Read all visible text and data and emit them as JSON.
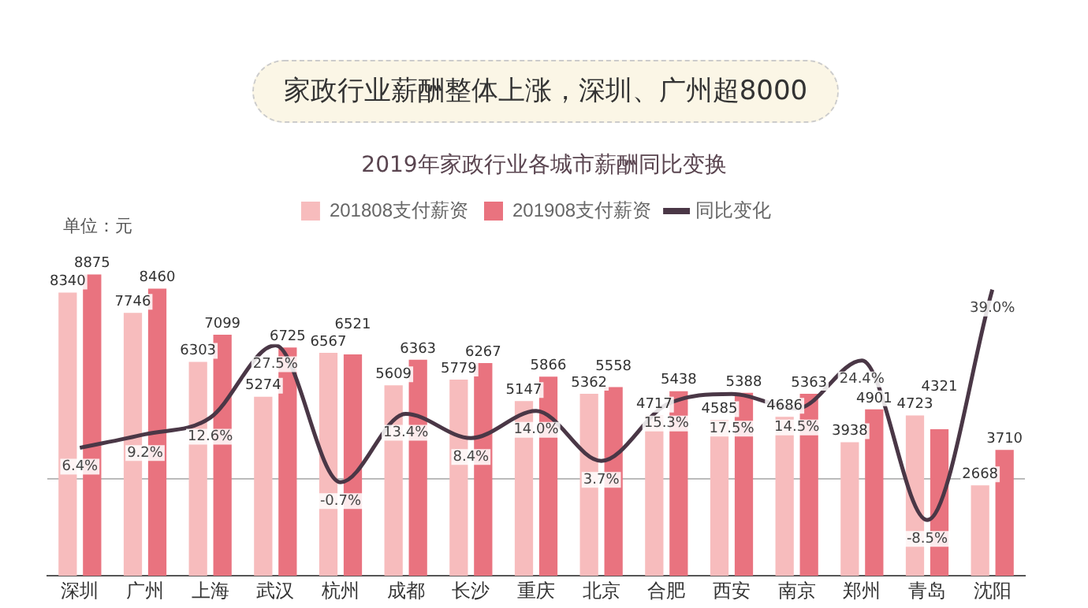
{
  "chart_data": {
    "type": "bar",
    "title": "家政行业薪酬整体上涨，深圳、广州超8000",
    "subtitle": "2019年家政行业各城市薪酬同比变换",
    "annotations": [
      "单位：元"
    ],
    "categories": [
      "深圳",
      "广州",
      "上海",
      "武汉",
      "杭州",
      "成都",
      "长沙",
      "重庆",
      "北京",
      "合肥",
      "西安",
      "南京",
      "郑州",
      "青岛",
      "沈阳"
    ],
    "series": [
      {
        "name": "201808支付薪资",
        "color": "#f7bcbd",
        "values": [
          8340,
          7746,
          6303,
          5274,
          6567,
          5609,
          5779,
          5147,
          5362,
          4717,
          4585,
          4686,
          3938,
          4723,
          2668
        ]
      },
      {
        "name": "201908支付薪资",
        "color": "#e9737f",
        "values": [
          8875,
          8460,
          7099,
          6725,
          6521,
          6363,
          6267,
          5866,
          5558,
          5438,
          5388,
          5363,
          4901,
          4321,
          3710
        ]
      },
      {
        "name": "同比变化",
        "type": "line",
        "axis": "y2",
        "color": "#4a3746",
        "marker": "none",
        "values": [
          6.4,
          9.2,
          12.6,
          27.5,
          -0.7,
          13.4,
          8.4,
          14.0,
          3.7,
          15.3,
          17.5,
          14.5,
          24.4,
          -8.5,
          39.0
        ],
        "value_labels": [
          "6.4%",
          "9.2%",
          "12.6%",
          "27.5%",
          "-0.7%",
          "13.4%",
          "8.4%",
          "14.0%",
          "3.7%",
          "15.3%",
          "17.5%",
          "14.5%",
          "24.4%",
          "-8.5%",
          "39.0%"
        ]
      }
    ],
    "data_labels": true,
    "tick_labels": "x",
    "legend": "top",
    "ref_lines": [
      {
        "axis": "y2",
        "value": 0,
        "color": "#bbbbbb"
      }
    ]
  }
}
